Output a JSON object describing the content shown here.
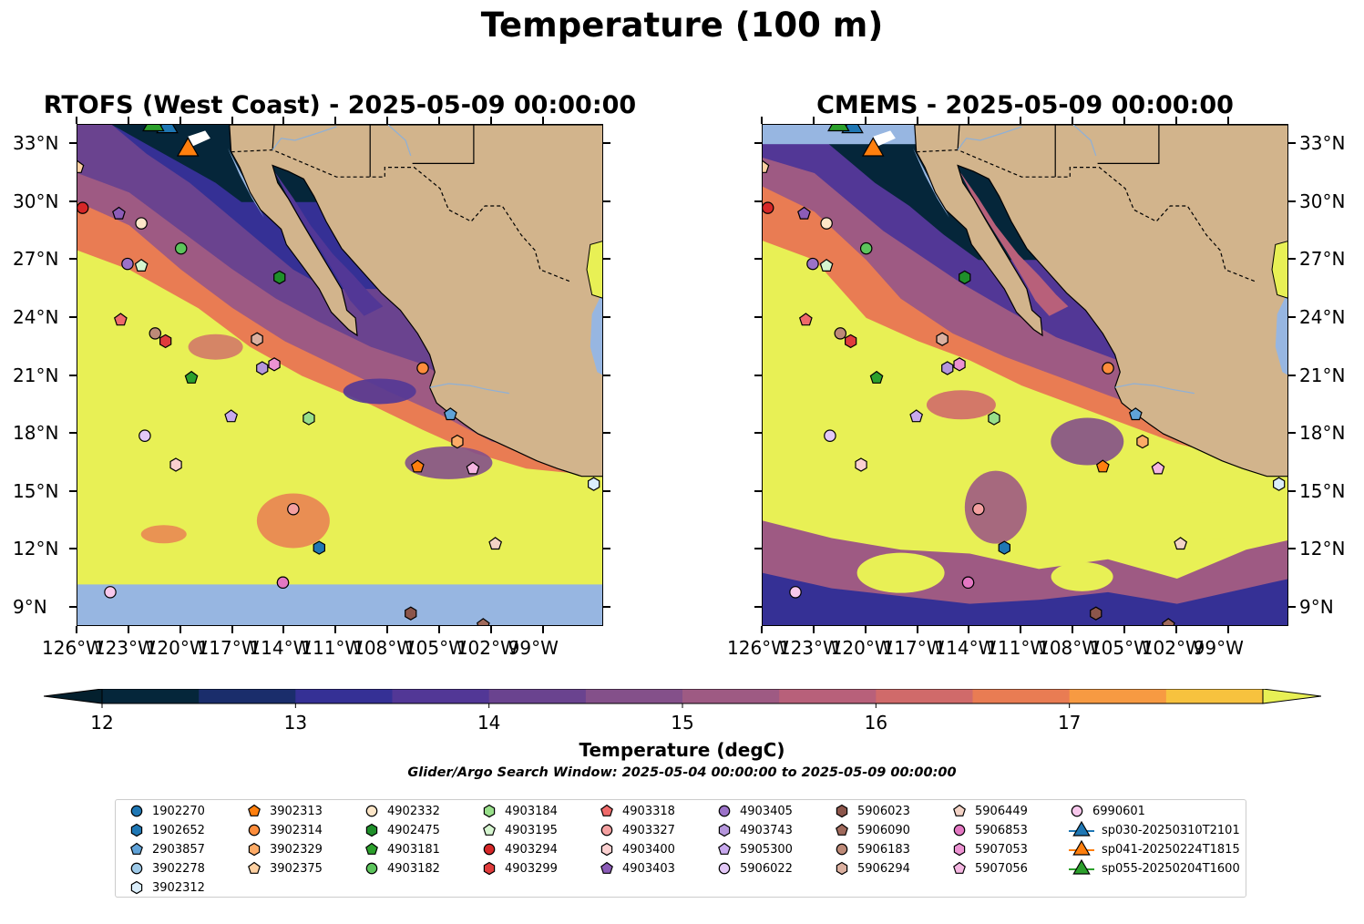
{
  "title": "Temperature (100 m)",
  "panels": [
    {
      "title": "RTOFS (West Coast) - 2025-05-09 00:00:00"
    },
    {
      "title": "CMEMS - 2025-05-09 00:00:00"
    }
  ],
  "map": {
    "lon_range": [
      -126,
      -95.5
    ],
    "lat_range": [
      8,
      34
    ],
    "lat_ticks": [
      {
        "lat": 33,
        "label": "33°N"
      },
      {
        "lat": 30,
        "label": "30°N"
      },
      {
        "lat": 27,
        "label": "27°N"
      },
      {
        "lat": 24,
        "label": "24°N"
      },
      {
        "lat": 21,
        "label": "21°N"
      },
      {
        "lat": 18,
        "label": "18°N"
      },
      {
        "lat": 15,
        "label": "15°N"
      },
      {
        "lat": 12,
        "label": "12°N"
      },
      {
        "lat": 9,
        "label": "9°N"
      }
    ],
    "lon_ticks": [
      {
        "lon": -126,
        "label": "126°W"
      },
      {
        "lon": -123,
        "label": "123°W"
      },
      {
        "lon": -120,
        "label": "120°W"
      },
      {
        "lon": -117,
        "label": "117°W"
      },
      {
        "lon": -114,
        "label": "114°W"
      },
      {
        "lon": -111,
        "label": "111°W"
      },
      {
        "lon": -108,
        "label": "108°W"
      },
      {
        "lon": -105,
        "label": "105°W"
      },
      {
        "lon": -102,
        "label": "102°W"
      },
      {
        "lon": -99,
        "label": "99°W"
      }
    ],
    "land_color": "#d2b48c",
    "ocean_no_data_color": "#97b6e1",
    "warm_color": "#e8f055"
  },
  "colorbar": {
    "label": "Temperature (degC)",
    "ticks": [
      {
        "value": 12,
        "label": "12"
      },
      {
        "value": 13,
        "label": "13"
      },
      {
        "value": 14,
        "label": "14"
      },
      {
        "value": 15,
        "label": "15"
      },
      {
        "value": 16,
        "label": "16"
      },
      {
        "value": 17,
        "label": "17"
      }
    ],
    "levels": [
      12,
      12.5,
      13,
      13.5,
      14,
      14.5,
      15,
      15.5,
      16,
      16.5,
      17,
      17.5
    ],
    "colors": [
      "#05263a",
      "#1a2d6b",
      "#353095",
      "#523796",
      "#6a438f",
      "#84508a",
      "#9e5a83",
      "#b8607a",
      "#d06a6a",
      "#e97c53",
      "#f79a42",
      "#f7c23e"
    ],
    "under_color": "#04202e",
    "over_color": "#e8f055"
  },
  "search_window": "Glider/Argo Search Window: 2025-05-04 00:00:00 to 2025-05-09 00:00:00",
  "legend": [
    {
      "id": "1902270",
      "marker": "circle",
      "color": "#1f77b4"
    },
    {
      "id": "1902652",
      "marker": "hexagon",
      "color": "#1f77b4"
    },
    {
      "id": "2903857",
      "marker": "pentagon",
      "color": "#5fa2d8"
    },
    {
      "id": "3902278",
      "marker": "circle",
      "color": "#9ecae9"
    },
    {
      "id": "3902312",
      "marker": "hexagon",
      "color": "#dbeefb"
    },
    {
      "id": "3902313",
      "marker": "pentagon",
      "color": "#ff7f0e"
    },
    {
      "id": "3902314",
      "marker": "circle",
      "color": "#fd8d3c"
    },
    {
      "id": "3902329",
      "marker": "hexagon",
      "color": "#fdab67"
    },
    {
      "id": "3902375",
      "marker": "pentagon",
      "color": "#fdd0a2"
    },
    {
      "id": "4902332",
      "marker": "circle",
      "color": "#fde6c8"
    },
    {
      "id": "4902475",
      "marker": "hexagon",
      "color": "#1f8f2a"
    },
    {
      "id": "4903181",
      "marker": "pentagon",
      "color": "#2ca02c"
    },
    {
      "id": "4903182",
      "marker": "circle",
      "color": "#5cc45c"
    },
    {
      "id": "4903184",
      "marker": "hexagon",
      "color": "#98df8a"
    },
    {
      "id": "4903195",
      "marker": "pentagon",
      "color": "#d5f5cf"
    },
    {
      "id": "4903294",
      "marker": "circle",
      "color": "#d62728"
    },
    {
      "id": "4903299",
      "marker": "hexagon",
      "color": "#e03c3c"
    },
    {
      "id": "4903318",
      "marker": "pentagon",
      "color": "#ef6a6a"
    },
    {
      "id": "4903327",
      "marker": "circle",
      "color": "#f4a0a0"
    },
    {
      "id": "4903400",
      "marker": "hexagon",
      "color": "#fbd0d0"
    },
    {
      "id": "4903403",
      "marker": "pentagon",
      "color": "#8c5cb8"
    },
    {
      "id": "4903405",
      "marker": "circle",
      "color": "#9b72c8"
    },
    {
      "id": "4903743",
      "marker": "hexagon",
      "color": "#b596dc"
    },
    {
      "id": "5905300",
      "marker": "pentagon",
      "color": "#c8a9ee"
    },
    {
      "id": "5906022",
      "marker": "circle",
      "color": "#e3c8f7"
    },
    {
      "id": "5906023",
      "marker": "hexagon",
      "color": "#8c564b"
    },
    {
      "id": "5906090",
      "marker": "pentagon",
      "color": "#a06a5c"
    },
    {
      "id": "5906183",
      "marker": "circle",
      "color": "#bd8a78"
    },
    {
      "id": "5906294",
      "marker": "hexagon",
      "color": "#dbb0a0"
    },
    {
      "id": "5906449",
      "marker": "pentagon",
      "color": "#f3d3c6"
    },
    {
      "id": "5906853",
      "marker": "circle",
      "color": "#e377c2"
    },
    {
      "id": "5907053",
      "marker": "hexagon",
      "color": "#ec92d2"
    },
    {
      "id": "5907056",
      "marker": "pentagon",
      "color": "#f5b6e2"
    },
    {
      "id": "6990601",
      "marker": "circle",
      "color": "#f8c8ec"
    },
    {
      "id": "sp030-20250310T2101",
      "marker": "triangle",
      "color": "#1f77b4"
    },
    {
      "id": "sp041-20250224T1815",
      "marker": "triangle",
      "color": "#ff7f0e"
    },
    {
      "id": "sp055-20250204T1600",
      "marker": "triangle",
      "color": "#2ca02c"
    }
  ],
  "points": [
    {
      "id": "1902270",
      "lon": -114.1,
      "lat": 10.3
    },
    {
      "id": "1902652",
      "lon": -112.0,
      "lat": 12.1
    },
    {
      "id": "2903857",
      "lon": -104.4,
      "lat": 19.0
    },
    {
      "id": "3902278",
      "lon": -126.3,
      "lat": 31.8
    },
    {
      "id": "3902312",
      "lon": -96.1,
      "lat": 15.4
    },
    {
      "id": "3902313",
      "lon": -106.3,
      "lat": 16.3
    },
    {
      "id": "3902314",
      "lon": -106.0,
      "lat": 21.4
    },
    {
      "id": "3902329",
      "lon": -104.0,
      "lat": 17.6
    },
    {
      "id": "3902375",
      "lon": -126.0,
      "lat": 31.8
    },
    {
      "id": "4902332",
      "lon": -122.3,
      "lat": 28.9
    },
    {
      "id": "4902475",
      "lon": -114.3,
      "lat": 26.1
    },
    {
      "id": "4903181",
      "lon": -119.4,
      "lat": 20.9
    },
    {
      "id": "4903182",
      "lon": -120.0,
      "lat": 27.6
    },
    {
      "id": "4903184",
      "lon": -112.6,
      "lat": 18.8
    },
    {
      "id": "4903195",
      "lon": -122.3,
      "lat": 26.7
    },
    {
      "id": "4903294",
      "lon": -125.7,
      "lat": 29.7
    },
    {
      "id": "4903299",
      "lon": -120.9,
      "lat": 22.8
    },
    {
      "id": "4903318",
      "lon": -123.5,
      "lat": 23.9
    },
    {
      "id": "4903327",
      "lon": -113.5,
      "lat": 14.1
    },
    {
      "id": "4903400",
      "lon": -120.3,
      "lat": 16.4
    },
    {
      "id": "4903403",
      "lon": -123.6,
      "lat": 29.4
    },
    {
      "id": "4903405",
      "lon": -123.1,
      "lat": 26.8
    },
    {
      "id": "4903743",
      "lon": -115.3,
      "lat": 21.4
    },
    {
      "id": "5905300",
      "lon": -117.1,
      "lat": 18.9
    },
    {
      "id": "5906022",
      "lon": -122.1,
      "lat": 17.9
    },
    {
      "id": "5906023",
      "lon": -106.7,
      "lat": 8.7
    },
    {
      "id": "5906090",
      "lon": -102.5,
      "lat": 8.1
    },
    {
      "id": "5906183",
      "lon": -121.5,
      "lat": 23.2
    },
    {
      "id": "5906294",
      "lon": -115.6,
      "lat": 22.9
    },
    {
      "id": "5906449",
      "lon": -101.8,
      "lat": 12.3
    },
    {
      "id": "5906853",
      "lon": -114.1,
      "lat": 10.3
    },
    {
      "id": "5907053",
      "lon": -114.6,
      "lat": 21.6
    },
    {
      "id": "5907056",
      "lon": -103.1,
      "lat": 16.2
    },
    {
      "id": "6990601",
      "lon": -124.1,
      "lat": 9.8
    },
    {
      "id": "sp030-20250310T2101",
      "lon": -120.8,
      "lat": 33.9
    },
    {
      "id": "sp041-20250224T1815",
      "lon": -119.6,
      "lat": 32.7
    },
    {
      "id": "sp055-20250204T1600",
      "lon": -121.6,
      "lat": 34.0
    }
  ]
}
